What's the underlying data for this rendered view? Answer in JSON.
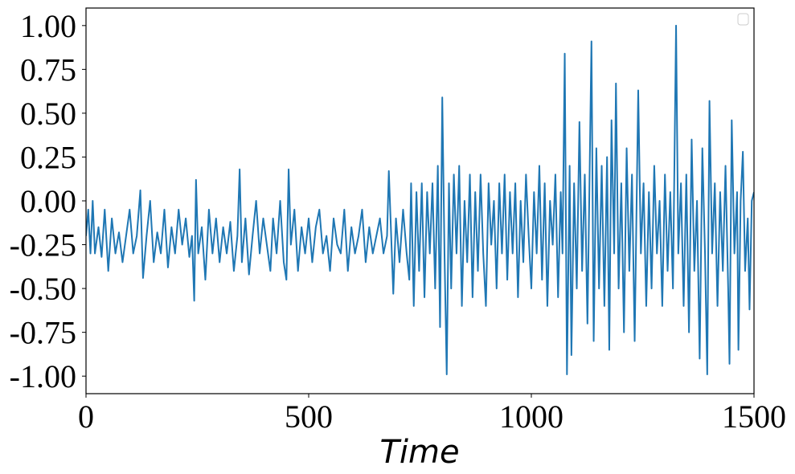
{
  "chart_data": {
    "type": "line",
    "xlabel": "Time",
    "xlim": [
      0,
      1500
    ],
    "xticks": [
      0,
      500,
      1000,
      1500
    ],
    "ylim": [
      -1.1,
      1.1
    ],
    "yticks": [
      {
        "value": -1,
        "label": "-1.00"
      },
      {
        "value": -0.75,
        "label": "-0.75"
      },
      {
        "value": -0.5,
        "label": "-0.50"
      },
      {
        "value": -0.25,
        "label": "-0.25"
      },
      {
        "value": 0,
        "label": "0.00"
      },
      {
        "value": 0.25,
        "label": "0.25"
      },
      {
        "value": 0.5,
        "label": "0.50"
      },
      {
        "value": 0.75,
        "label": "0.75"
      },
      {
        "value": 1,
        "label": "1.00"
      }
    ],
    "grid": false,
    "color": "#1f77b4",
    "x": [
      0,
      5,
      10,
      15,
      20,
      28,
      35,
      42,
      50,
      58,
      66,
      74,
      82,
      90,
      98,
      106,
      114,
      122,
      128,
      136,
      144,
      152,
      160,
      168,
      176,
      184,
      192,
      200,
      208,
      216,
      224,
      232,
      238,
      243,
      247,
      252,
      260,
      268,
      276,
      284,
      292,
      300,
      308,
      316,
      324,
      332,
      340,
      345,
      350,
      358,
      366,
      374,
      382,
      390,
      398,
      406,
      414,
      420,
      428,
      436,
      444,
      450,
      455,
      460,
      468,
      476,
      484,
      492,
      500,
      508,
      516,
      524,
      532,
      540,
      548,
      556,
      564,
      572,
      580,
      588,
      596,
      604,
      612,
      620,
      628,
      636,
      644,
      652,
      660,
      668,
      676,
      680,
      686,
      690,
      696,
      704,
      712,
      720,
      726,
      730,
      736,
      742,
      748,
      754,
      760,
      766,
      772,
      778,
      784,
      790,
      795,
      800,
      805,
      810,
      815,
      820,
      826,
      832,
      838,
      844,
      850,
      856,
      862,
      868,
      874,
      880,
      886,
      892,
      898,
      904,
      910,
      916,
      922,
      928,
      934,
      940,
      946,
      952,
      958,
      964,
      970,
      976,
      982,
      988,
      994,
      1000,
      1006,
      1012,
      1018,
      1024,
      1030,
      1036,
      1042,
      1048,
      1054,
      1060,
      1066,
      1070,
      1075,
      1080,
      1086,
      1090,
      1096,
      1102,
      1108,
      1114,
      1120,
      1126,
      1130,
      1135,
      1140,
      1146,
      1152,
      1158,
      1164,
      1170,
      1175,
      1180,
      1186,
      1190,
      1196,
      1202,
      1208,
      1214,
      1220,
      1226,
      1232,
      1240,
      1246,
      1252,
      1258,
      1264,
      1270,
      1276,
      1282,
      1288,
      1294,
      1300,
      1306,
      1312,
      1318,
      1325,
      1330,
      1336,
      1342,
      1348,
      1354,
      1360,
      1366,
      1372,
      1378,
      1384,
      1390,
      1395,
      1400,
      1406,
      1412,
      1418,
      1424,
      1430,
      1436,
      1442,
      1445,
      1450,
      1456,
      1462,
      1465,
      1470,
      1475,
      1480,
      1486,
      1490,
      1495,
      1500
    ],
    "values": [
      -0.2,
      -0.05,
      -0.3,
      0.0,
      -0.3,
      -0.15,
      -0.32,
      -0.05,
      -0.4,
      -0.1,
      -0.3,
      -0.18,
      -0.35,
      -0.2,
      -0.05,
      -0.3,
      -0.2,
      0.06,
      -0.44,
      -0.2,
      0.0,
      -0.35,
      -0.18,
      -0.3,
      -0.05,
      -0.38,
      -0.15,
      -0.3,
      -0.05,
      -0.25,
      -0.1,
      -0.32,
      -0.2,
      -0.57,
      0.12,
      -0.3,
      -0.15,
      -0.45,
      -0.05,
      -0.3,
      -0.1,
      -0.35,
      -0.15,
      -0.3,
      -0.12,
      -0.4,
      -0.2,
      0.18,
      -0.35,
      -0.1,
      -0.42,
      -0.2,
      0.0,
      -0.3,
      -0.1,
      -0.25,
      -0.4,
      -0.1,
      -0.3,
      0.0,
      -0.35,
      -0.45,
      0.18,
      -0.25,
      -0.05,
      -0.4,
      -0.15,
      -0.3,
      -0.1,
      -0.35,
      -0.15,
      -0.05,
      -0.3,
      -0.2,
      -0.4,
      -0.1,
      -0.25,
      -0.3,
      -0.05,
      -0.4,
      -0.15,
      -0.3,
      -0.2,
      -0.05,
      -0.35,
      -0.15,
      -0.3,
      -0.2,
      -0.1,
      -0.3,
      -0.2,
      0.17,
      -0.25,
      -0.53,
      -0.1,
      -0.35,
      -0.05,
      -0.3,
      -0.45,
      0.1,
      -0.6,
      0.05,
      -0.4,
      0.1,
      -0.55,
      0.05,
      -0.3,
      0.1,
      -0.5,
      0.2,
      -0.72,
      0.59,
      -0.3,
      -0.99,
      0.1,
      -0.5,
      0.15,
      -0.3,
      0.2,
      -0.6,
      0.0,
      -0.35,
      0.15,
      -0.55,
      0.05,
      -0.4,
      0.15,
      -0.3,
      -0.6,
      0.1,
      -0.25,
      0.0,
      -0.5,
      0.1,
      -0.3,
      0.15,
      -0.45,
      0.05,
      -0.3,
      0.1,
      -0.55,
      0.0,
      -0.35,
      0.15,
      -0.2,
      -0.5,
      0.05,
      -0.3,
      0.2,
      -0.45,
      0.1,
      -0.6,
      0.0,
      -0.25,
      0.15,
      -0.55,
      0.05,
      -0.3,
      0.84,
      -0.99,
      0.2,
      -0.88,
      0.1,
      -0.5,
      0.45,
      -0.4,
      0.15,
      -0.7,
      0.0,
      0.91,
      -0.8,
      0.3,
      -0.5,
      0.2,
      -0.6,
      0.25,
      -0.85,
      0.46,
      -0.3,
      0.67,
      -0.5,
      0.1,
      -0.75,
      0.3,
      -0.4,
      0.15,
      -0.8,
      0.63,
      -0.3,
      0.1,
      -0.6,
      0.05,
      -0.5,
      0.2,
      -0.3,
      0.0,
      -0.6,
      0.15,
      -0.4,
      0.05,
      -0.5,
      1.0,
      -0.3,
      0.1,
      -0.6,
      0.15,
      -0.75,
      0.35,
      -0.4,
      0.0,
      -0.9,
      0.3,
      -0.3,
      -0.99,
      0.57,
      -0.3,
      0.1,
      -0.6,
      0.05,
      -0.4,
      0.2,
      -0.5,
      -0.93,
      0.46,
      -0.3,
      0.05,
      -0.85,
      0.0,
      0.28,
      -0.4,
      -0.1,
      -0.62,
      0.0,
      0.05
    ]
  }
}
